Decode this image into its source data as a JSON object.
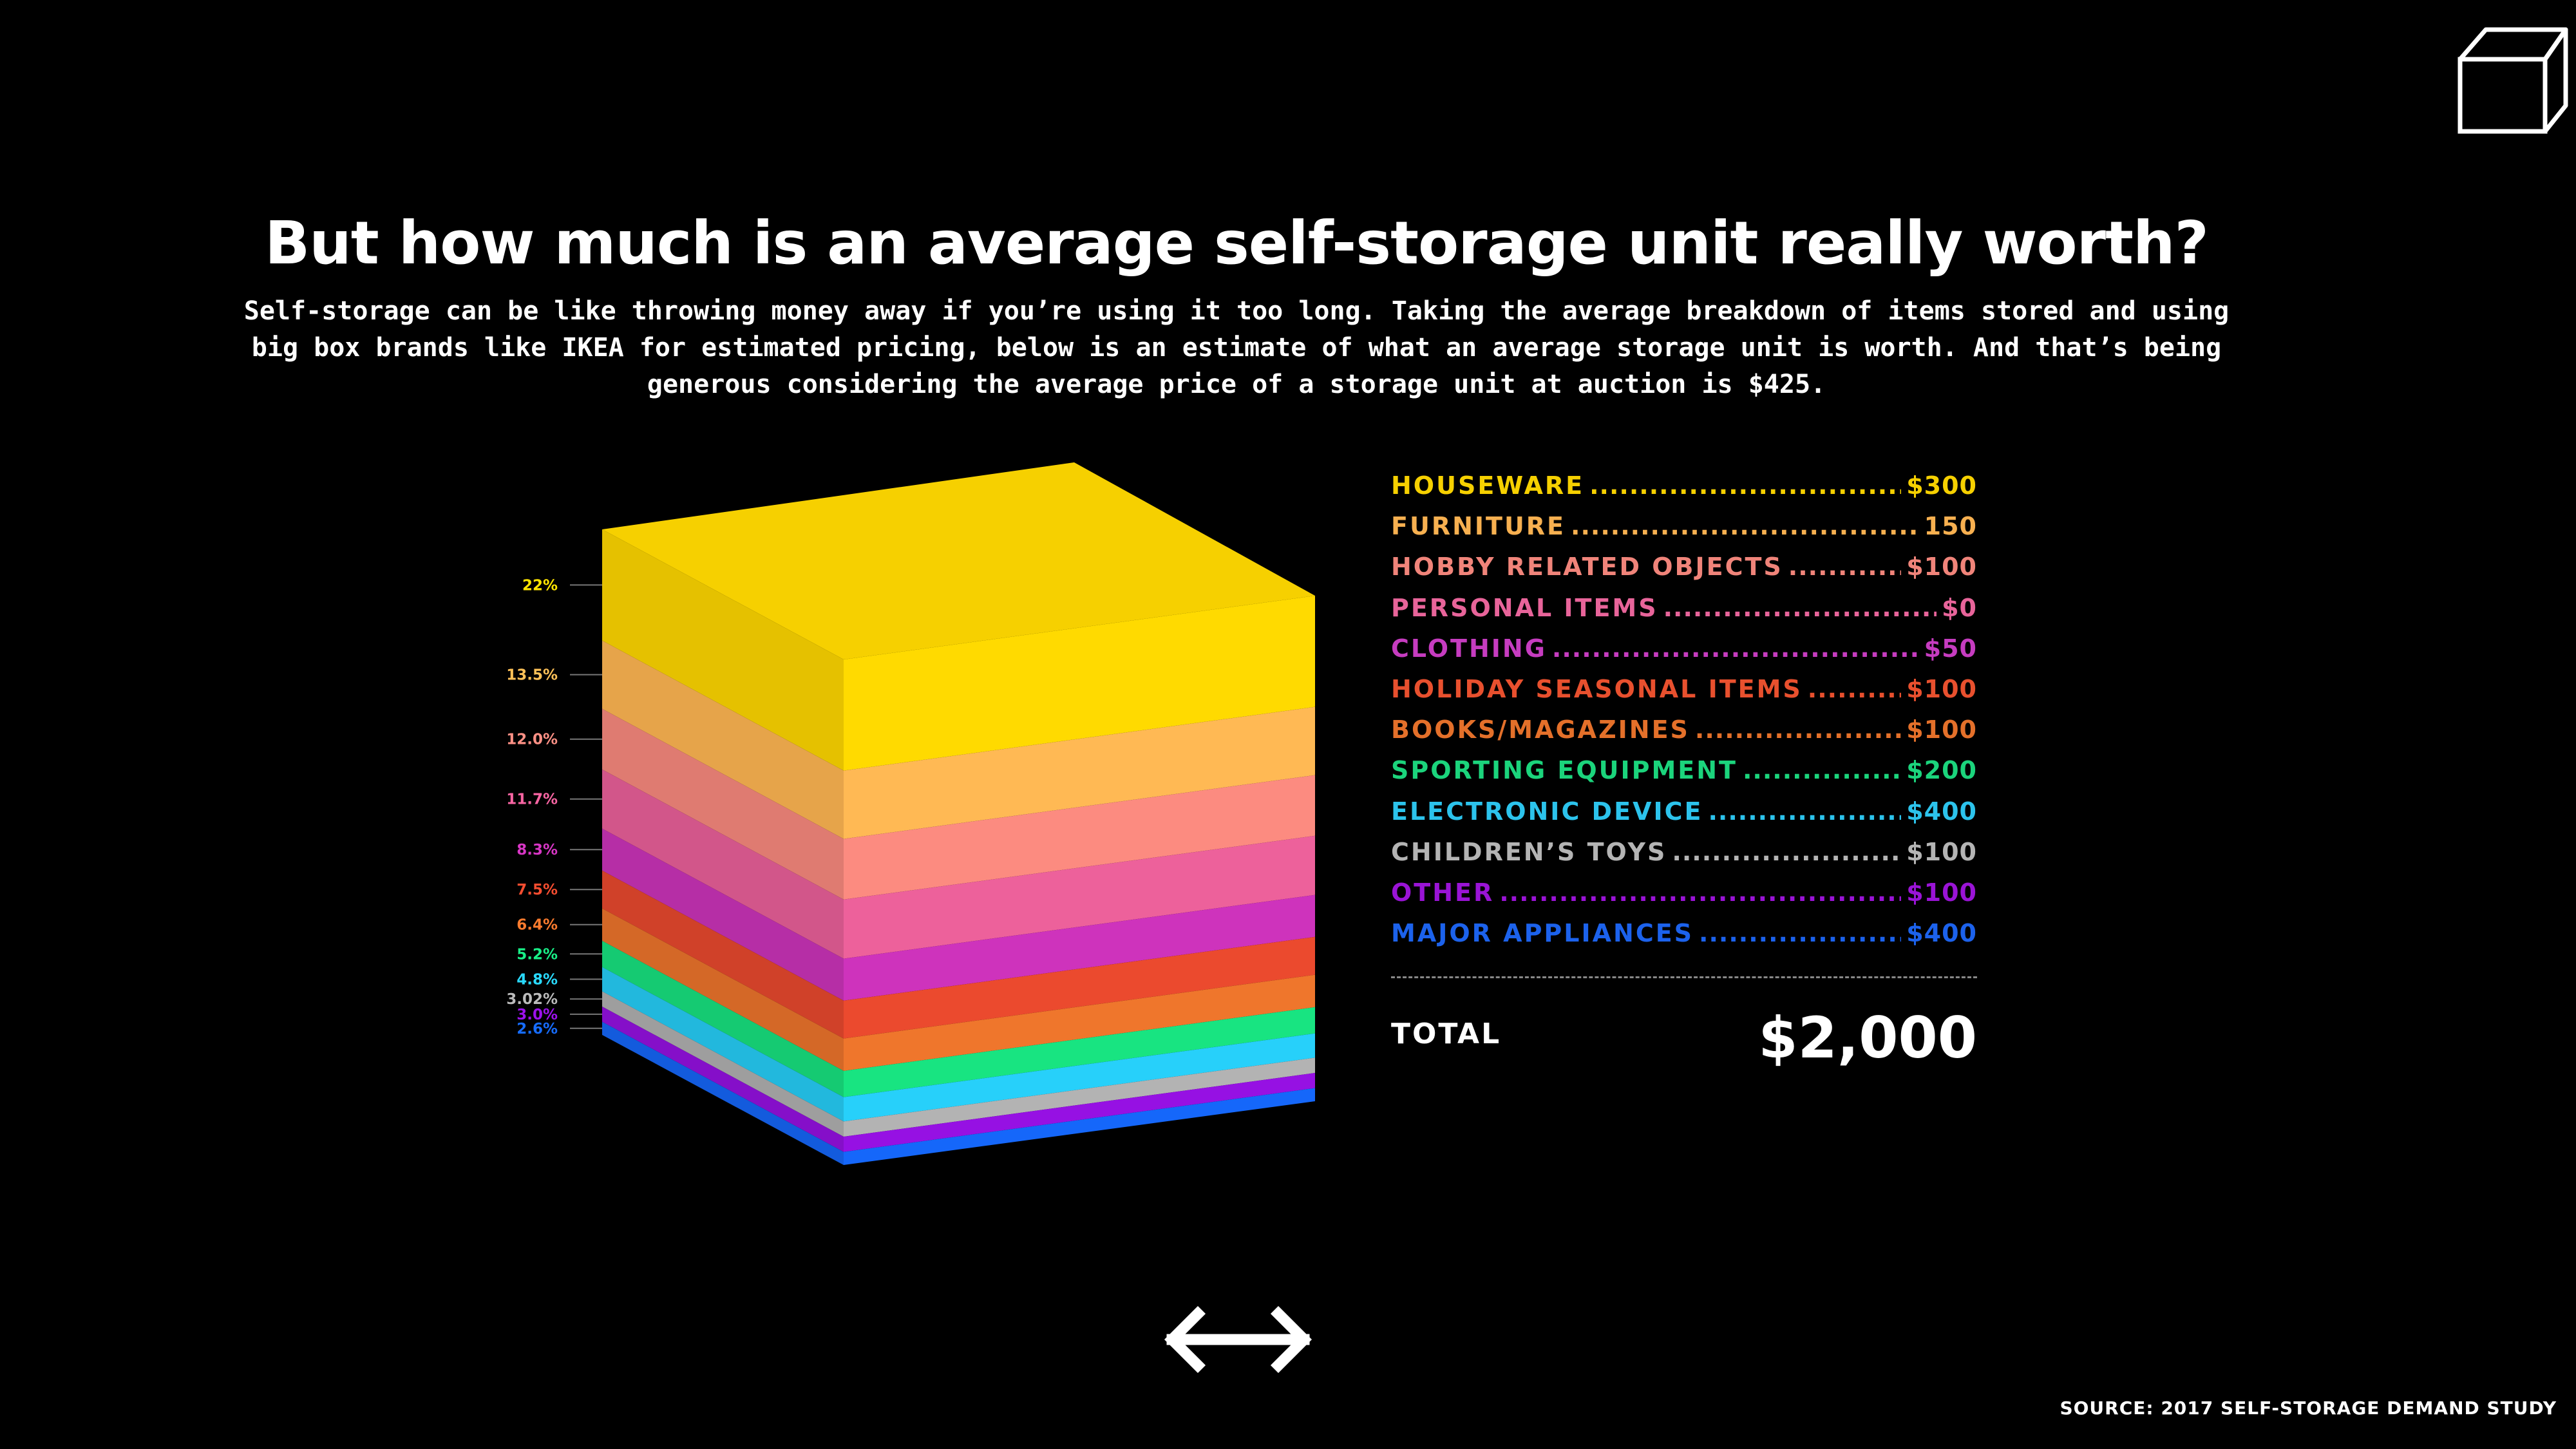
{
  "header": {
    "title": "But how much is an average self-storage unit really worth?",
    "subtitle": "Self-storage can be like throwing money away if you’re using it too long. Taking the average breakdown of items stored and using big box brands like IKEA for estimated pricing, below is an estimate of what an average storage unit is worth. And that’s being generous considering the average price of a storage unit at auction is $425."
  },
  "chart_data": {
    "type": "stacked-cube",
    "layers": [
      {
        "name": "HOUSEWARE",
        "percent_label": "22%",
        "percent": 22,
        "color": "#F6D000"
      },
      {
        "name": "FURNITURE",
        "percent_label": "13.5%",
        "percent": 13.5,
        "color": "#F7B050"
      },
      {
        "name": "HOBBY RELATED OBJECTS",
        "percent_label": "12.0%",
        "percent": 12.0,
        "color": "#F0847A"
      },
      {
        "name": "PERSONAL ITEMS",
        "percent_label": "11.7%",
        "percent": 11.7,
        "color": "#E25C94"
      },
      {
        "name": "CLOTHING",
        "percent_label": "8.3%",
        "percent": 8.3,
        "color": "#C431B3"
      },
      {
        "name": "HOLIDAY SEASONAL ITEMS",
        "percent_label": "7.5%",
        "percent": 7.5,
        "color": "#E0462C"
      },
      {
        "name": "BOOKS/MAGAZINES",
        "percent_label": "6.4%",
        "percent": 6.4,
        "color": "#E4702A"
      },
      {
        "name": "SPORTING EQUIPMENT",
        "percent_label": "5.2%",
        "percent": 5.2,
        "color": "#17D97B"
      },
      {
        "name": "ELECTRONIC DEVICE",
        "percent_label": "4.8%",
        "percent": 4.8,
        "color": "#25C6EE"
      },
      {
        "name": "CHILDREN’S TOYS",
        "percent_label": "3.02%",
        "percent": 3.02,
        "color": "#AAAAAA"
      },
      {
        "name": "OTHER",
        "percent_label": "3.0%",
        "percent": 3.0,
        "color": "#8F10D8"
      },
      {
        "name": "MAJOR APPLIANCES",
        "percent_label": "2.6%",
        "percent": 2.6,
        "color": "#1462EE"
      }
    ]
  },
  "legend": {
    "items": [
      {
        "label": "HOUSEWARE",
        "value": "$300",
        "color": "#F6D000"
      },
      {
        "label": "FURNITURE",
        "value": "150",
        "color": "#F7B050"
      },
      {
        "label": "HOBBY RELATED OBJECTS",
        "value": "$100",
        "color": "#F0847A"
      },
      {
        "label": "PERSONAL ITEMS",
        "value": "$0",
        "color": "#E8649A"
      },
      {
        "label": "CLOTHING",
        "value": "$50",
        "color": "#C63CC0"
      },
      {
        "label": "HOLIDAY SEASONAL ITEMS",
        "value": "$100",
        "color": "#E8502E"
      },
      {
        "label": "BOOKS/MAGAZINES",
        "value": "$100",
        "color": "#E4702A"
      },
      {
        "label": "SPORTING EQUIPMENT",
        "value": "$200",
        "color": "#1BD47C"
      },
      {
        "label": "ELECTRONIC DEVICE",
        "value": "$400",
        "color": "#2CC3EC"
      },
      {
        "label": "CHILDREN’S TOYS",
        "value": "$100",
        "color": "#B4B4B4"
      },
      {
        "label": "OTHER",
        "value": "$100",
        "color": "#9A14D6"
      },
      {
        "label": "MAJOR APPLIANCES",
        "value": "$400",
        "color": "#1C62EC"
      }
    ],
    "total_label": "TOTAL",
    "total_value": "$2,000"
  },
  "footer": {
    "source": "SOURCE: 2017 SELF-STORAGE DEMAND STUDY"
  },
  "icons": {
    "logo": "cube-outline-icon",
    "nav": "left-right-arrows-icon"
  }
}
